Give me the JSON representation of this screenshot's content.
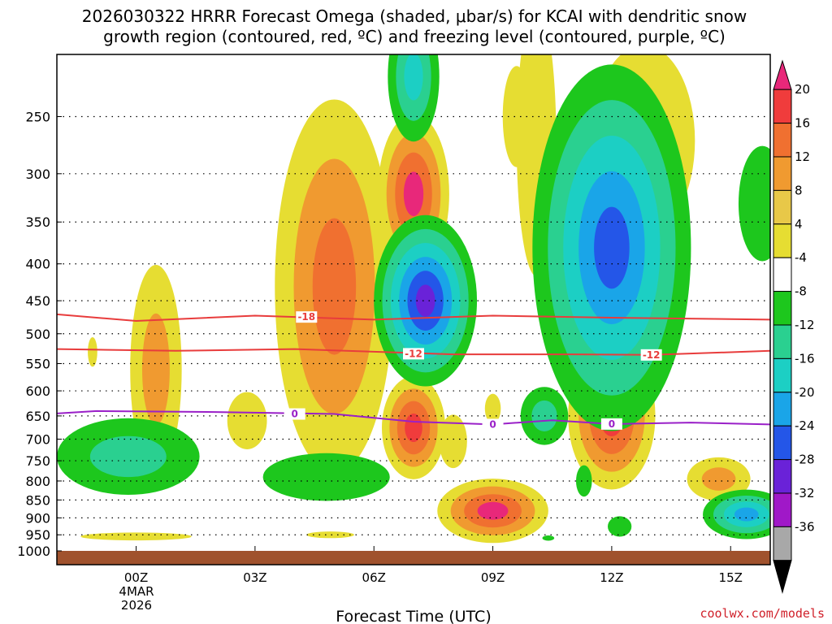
{
  "chart_data": {
    "type": "heatmap",
    "title_line1": "2026030322 HRRR Forecast Omega (shaded, μbar/s) for KCAI with dendritic snow",
    "title_line2": "growth region (contoured, red, ºC) and freezing level (contoured, purple, ºC)",
    "xlabel": "Forecast Time (UTC)",
    "x_ticks": [
      {
        "hour": 0,
        "label": "00Z"
      },
      {
        "hour": 3,
        "label": "03Z"
      },
      {
        "hour": 6,
        "label": "06Z"
      },
      {
        "hour": 9,
        "label": "09Z"
      },
      {
        "hour": 12,
        "label": "12Z"
      },
      {
        "hour": 15,
        "label": "15Z"
      }
    ],
    "x_start_date": [
      "4MAR",
      "2026"
    ],
    "x_range_hours": [
      -2,
      16
    ],
    "y_ticks": [
      250,
      300,
      350,
      400,
      450,
      500,
      550,
      600,
      650,
      700,
      750,
      800,
      850,
      900,
      950,
      1000
    ],
    "y_range_hpa": [
      205,
      1000
    ],
    "colorbar": {
      "labels": [
        "20",
        "16",
        "12",
        "8",
        "4",
        "-4",
        "-8",
        "-12",
        "-16",
        "-20",
        "-24",
        "-28",
        "-32",
        "-36"
      ],
      "bins": [
        {
          "color": "#e8287a"
        },
        {
          "color": "#f03c3c"
        },
        {
          "color": "#f07030"
        },
        {
          "color": "#f09a30"
        },
        {
          "color": "#e8c848"
        },
        {
          "color": "#e6dd32"
        },
        {
          "color": "#ffffff"
        },
        {
          "color": "#1dc71d"
        },
        {
          "color": "#2ad090"
        },
        {
          "color": "#1ccfc4"
        },
        {
          "color": "#1aa5e8"
        },
        {
          "color": "#2456e8"
        },
        {
          "color": "#6a22d8"
        },
        {
          "color": "#a018c8"
        },
        {
          "color": "#a8a8a8"
        },
        {
          "color": "#000000"
        }
      ]
    },
    "series": [
      {
        "name": "dendritic growth isotherm",
        "label": "-18",
        "color": "#e83c3c",
        "points": [
          [
            -2,
            470
          ],
          [
            0,
            480
          ],
          [
            3,
            472
          ],
          [
            6,
            478
          ],
          [
            9,
            472
          ],
          [
            12,
            475
          ],
          [
            16,
            478
          ]
        ]
      },
      {
        "name": "dendritic growth isotherm",
        "label": "-12",
        "color": "#e83c3c",
        "points": [
          [
            -2,
            525
          ],
          [
            1,
            528
          ],
          [
            4,
            525
          ],
          [
            8,
            534
          ],
          [
            11,
            534
          ],
          [
            13,
            535
          ],
          [
            16,
            528
          ]
        ]
      },
      {
        "name": "freezing level",
        "label": "0",
        "color": "#9a20c8",
        "points": [
          [
            -2,
            645
          ],
          [
            -1,
            640
          ],
          [
            2,
            642
          ],
          [
            5,
            646
          ],
          [
            7,
            662
          ],
          [
            9,
            668
          ],
          [
            10.5,
            659
          ],
          [
            12,
            667
          ],
          [
            14,
            664
          ],
          [
            16,
            668
          ]
        ]
      }
    ],
    "isotherm_labels": [
      {
        "text": "-18",
        "color": "#e83c3c",
        "hour": 4.3,
        "p": 474
      },
      {
        "text": "-12",
        "color": "#e83c3c",
        "hour": 7.0,
        "p": 533
      },
      {
        "text": "-12",
        "color": "#e83c3c",
        "hour": 13.0,
        "p": 535
      },
      {
        "text": "0",
        "color": "#9a20c8",
        "hour": 4.0,
        "p": 646
      },
      {
        "text": "0",
        "color": "#9a20c8",
        "hour": 9.0,
        "p": 668
      },
      {
        "text": "0",
        "color": "#9a20c8",
        "hour": 12.0,
        "p": 667
      }
    ],
    "omega_features": [
      {
        "h": 0.5,
        "p": 560,
        "w": 0.65,
        "dp": 180,
        "bins": [
          5,
          3
        ]
      },
      {
        "h": -1.1,
        "p": 530,
        "w": 0.12,
        "dp": 25,
        "bins": [
          5
        ]
      },
      {
        "h": 5.0,
        "p": 430,
        "w": 1.5,
        "dp": 230,
        "bins": [
          5,
          3,
          2
        ]
      },
      {
        "h": 7.0,
        "p": 320,
        "w": 0.9,
        "dp": 80,
        "bins": [
          5,
          3,
          2,
          0
        ]
      },
      {
        "h": 7.0,
        "p": 675,
        "w": 0.8,
        "dp": 110,
        "bins": [
          5,
          3,
          2,
          1
        ]
      },
      {
        "h": 9.0,
        "p": 880,
        "w": 1.4,
        "dp": 90,
        "bins": [
          5,
          3,
          2,
          0
        ]
      },
      {
        "h": 12.0,
        "p": 650,
        "w": 1.1,
        "dp": 150,
        "bins": [
          5,
          3,
          2,
          1
        ]
      },
      {
        "h": 12.8,
        "p": 270,
        "w": 1.3,
        "dp": 80,
        "bins": [
          5
        ]
      },
      {
        "h": 10.1,
        "p": 270,
        "w": 0.5,
        "dp": 110,
        "bins": [
          5
        ]
      },
      {
        "h": 14.7,
        "p": 795,
        "w": 0.8,
        "dp": 55,
        "bins": [
          5,
          3
        ]
      },
      {
        "h": 0,
        "p": 955,
        "w": 1.4,
        "dp": 12,
        "bins": [
          5
        ]
      },
      {
        "h": 4.9,
        "p": 950,
        "w": 0.6,
        "dp": 10,
        "bins": [
          5
        ]
      },
      {
        "h": 2.8,
        "p": 660,
        "w": 0.5,
        "dp": 60,
        "bins": [
          5
        ]
      },
      {
        "h": 8.0,
        "p": 705,
        "w": 0.35,
        "dp": 60,
        "bins": [
          5
        ]
      },
      {
        "h": 9.0,
        "p": 635,
        "w": 0.2,
        "dp": 30,
        "bins": [
          5
        ]
      },
      {
        "h": 9.6,
        "p": 250,
        "w": 0.35,
        "dp": 40,
        "bins": [
          5
        ]
      },
      {
        "h": 7.0,
        "p": 220,
        "w": 0.65,
        "dp": 45,
        "bins": [
          7,
          8,
          9
        ]
      },
      {
        "h": 7.3,
        "p": 450,
        "w": 1.3,
        "dp": 120,
        "bins": [
          7,
          8,
          9,
          10,
          11,
          12
        ]
      },
      {
        "h": 12.0,
        "p": 380,
        "w": 2.0,
        "dp": 200,
        "bins": [
          7,
          8,
          9,
          10,
          11
        ]
      },
      {
        "h": -0.2,
        "p": 740,
        "w": 1.8,
        "dp": 90,
        "bins": [
          7,
          8
        ]
      },
      {
        "h": 4.8,
        "p": 790,
        "w": 1.6,
        "dp": 60,
        "bins": [
          7
        ]
      },
      {
        "h": 10.3,
        "p": 650,
        "w": 0.6,
        "dp": 60,
        "bins": [
          7,
          8
        ]
      },
      {
        "h": 12.2,
        "p": 925,
        "w": 0.3,
        "dp": 30,
        "bins": [
          7
        ]
      },
      {
        "h": 15.4,
        "p": 890,
        "w": 1.1,
        "dp": 70,
        "bins": [
          7,
          8,
          9,
          10
        ]
      },
      {
        "h": 15.8,
        "p": 330,
        "w": 0.6,
        "dp": 60,
        "bins": [
          7
        ]
      },
      {
        "h": 11.3,
        "p": 800,
        "w": 0.2,
        "dp": 40,
        "bins": [
          7
        ]
      },
      {
        "h": 10.4,
        "p": 960,
        "w": 0.15,
        "dp": 8,
        "bins": [
          7
        ]
      }
    ],
    "credit": "coolwx.com/models"
  }
}
